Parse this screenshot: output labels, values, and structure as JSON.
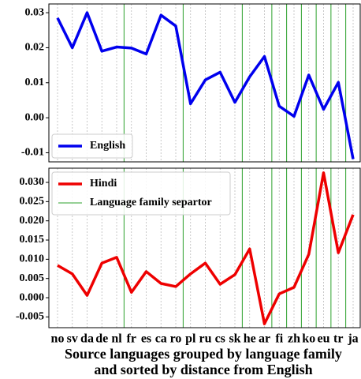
{
  "chart_data": {
    "type": "line",
    "x_label": [
      "Source languages grouped by language family",
      "and sorted by distance from English"
    ],
    "categories": [
      "no",
      "sv",
      "da",
      "de",
      "nl",
      "fr",
      "es",
      "ca",
      "ro",
      "pl",
      "ru",
      "cs",
      "sk",
      "he",
      "ar",
      "fi",
      "zh",
      "ko",
      "eu",
      "tr",
      "ja"
    ],
    "separator_label": "Language family separtor",
    "separator_color": "#2ca02c",
    "separator_after": [
      "nl",
      "ro",
      "sk",
      "ar",
      "fi",
      "zh",
      "ko",
      "eu",
      "tr"
    ],
    "grid": true,
    "panels": [
      {
        "ylim": [
          -0.0126,
          0.0325
        ],
        "yticks": [
          0.03,
          0.02,
          0.01,
          {
            "value": 0,
            "label": "0.00"
          },
          -0.01
        ],
        "legend": "lower left",
        "show_separator_legend": false,
        "series": [
          {
            "name": "English",
            "color": "#0000ee",
            "values": [
              0.0285,
              0.02,
              0.03,
              0.019,
              0.0202,
              0.0199,
              0.0182,
              0.0293,
              0.0262,
              0.004,
              0.0108,
              0.013,
              0.0044,
              0.0117,
              0.0175,
              0.0033,
              0.0004,
              0.0122,
              0.0024,
              0.0101,
              -0.0118
            ]
          }
        ]
      },
      {
        "ylim": [
          -0.0078,
          0.0337
        ],
        "yticks": [
          {
            "value": 0.03,
            "label": "0.030"
          },
          {
            "value": 0.025,
            "label": "0.025"
          },
          {
            "value": 0.02,
            "label": "0.020"
          },
          {
            "value": 0.015,
            "label": "0.015"
          },
          {
            "value": 0.01,
            "label": "0.010"
          },
          {
            "value": 0.005,
            "label": "0.005"
          },
          {
            "value": 0,
            "label": "0.000"
          },
          {
            "value": -0.005,
            "label": "-0.005"
          }
        ],
        "legend": "upper left",
        "show_separator_legend": true,
        "series": [
          {
            "name": "Hindi",
            "color": "#ee0000",
            "values": [
              0.0084,
              0.0062,
              0.0006,
              0.009,
              0.0105,
              0.0014,
              0.0068,
              0.0037,
              0.0029,
              0.0062,
              0.009,
              0.0035,
              0.006,
              0.0127,
              -0.0068,
              0.001,
              0.0027,
              0.0113,
              0.0325,
              0.0117,
              0.0216
            ]
          }
        ]
      }
    ]
  }
}
